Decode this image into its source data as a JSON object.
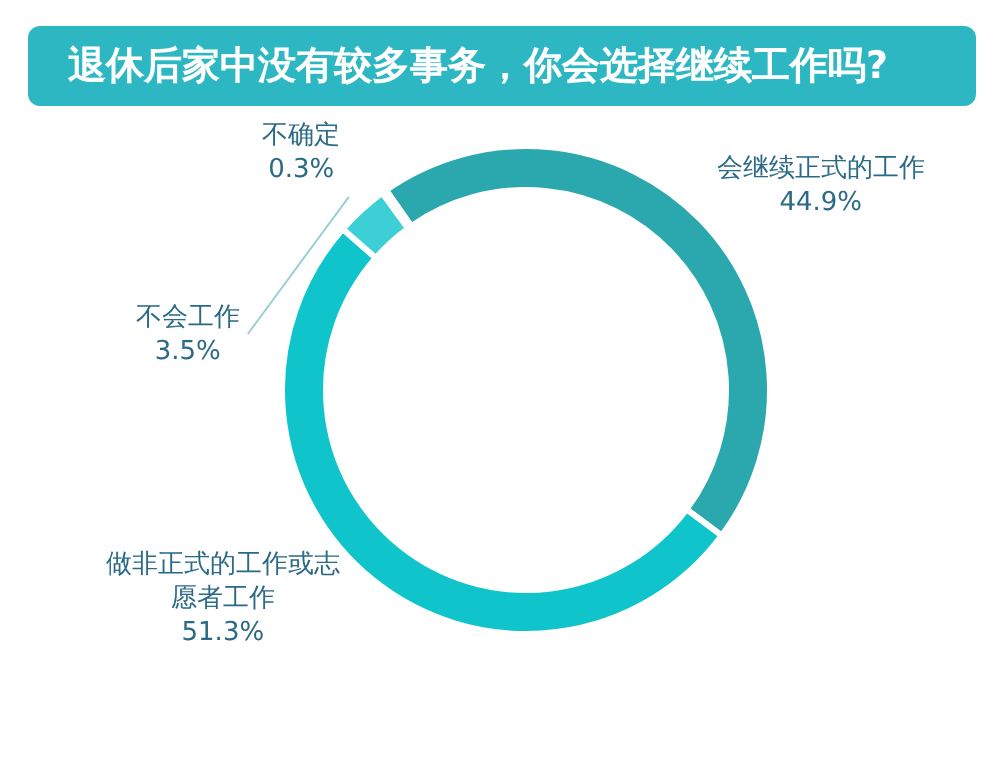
{
  "chart_data": {
    "type": "donut",
    "title": "退休后家中没有较多事务，你会选择继续工作吗?",
    "categories": [
      "会继续正式的工作",
      "做非正式的工作或志愿者工作",
      "不会工作",
      "不确定"
    ],
    "values": [
      44.9,
      51.3,
      3.5,
      0.3
    ],
    "value_labels": [
      "44.9%",
      "51.3%",
      "3.5%",
      "0.3%"
    ],
    "colors": [
      "#2aa8ad",
      "#10c4cc",
      "#3ccfd5",
      "#78dfe3"
    ]
  }
}
